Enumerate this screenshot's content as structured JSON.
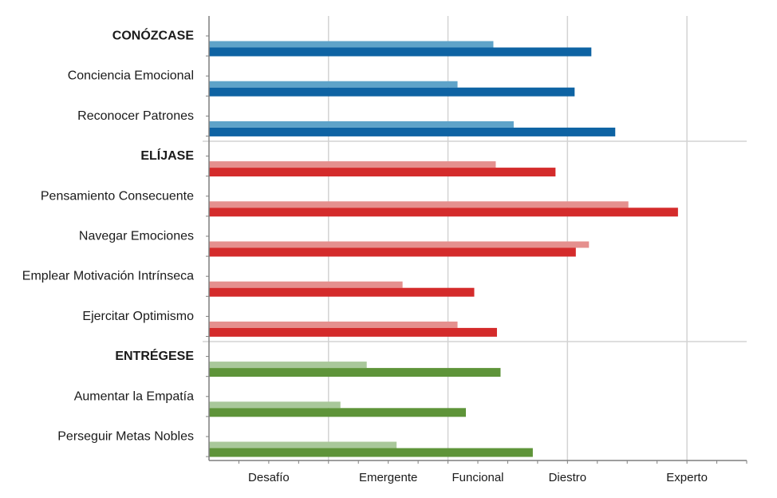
{
  "chart_data": {
    "type": "bar",
    "orientation": "horizontal",
    "categories": [
      {
        "label": "CONÓZCASE",
        "bold": true,
        "group": "blue"
      },
      {
        "label": "Conciencia Emocional",
        "bold": false,
        "group": "blue"
      },
      {
        "label": "Reconocer  Patrones",
        "bold": false,
        "group": "blue"
      },
      {
        "label": "ELÍJASE",
        "bold": true,
        "group": "red"
      },
      {
        "label": "Pensamiento  Consecuente",
        "bold": false,
        "group": "red"
      },
      {
        "label": "Navegar  Emociones",
        "bold": false,
        "group": "red"
      },
      {
        "label": "Emplear Motivación Intrínseca",
        "bold": false,
        "group": "red"
      },
      {
        "label": "Ejercitar Optimismo",
        "bold": false,
        "group": "red"
      },
      {
        "label": "ENTRÉGESE",
        "bold": true,
        "group": "green"
      },
      {
        "label": "Aumentar la Empatía",
        "bold": false,
        "group": "green"
      },
      {
        "label": "Perseguir Metas Nobles",
        "bold": false,
        "group": "green"
      }
    ],
    "series": [
      {
        "values": [
          102.6,
          96.6,
          106.0,
          103.0,
          125.2,
          118.6,
          87.4,
          96.6,
          81.4,
          77.0,
          86.4
        ]
      },
      {
        "values": [
          119.0,
          116.2,
          123.0,
          113.0,
          133.5,
          116.4,
          99.4,
          103.2,
          103.8,
          98.0,
          109.2
        ]
      }
    ],
    "xlim": [
      55,
      145
    ],
    "x_ticks": [
      {
        "label": "Desafío",
        "value": 65
      },
      {
        "label": "Emergente",
        "value": 85
      },
      {
        "label": "Funcional",
        "value": 100
      },
      {
        "label": "Diestro",
        "value": 115
      },
      {
        "label": "Experto",
        "value": 135
      }
    ],
    "colors": {
      "blue": {
        "light": "#5ea3c9",
        "dark": "#0e63a3"
      },
      "red": {
        "light": "#e5908e",
        "dark": "#d42b2b"
      },
      "green": {
        "light": "#a9c89a",
        "dark": "#5e9439"
      },
      "grid": "#d3d3d3",
      "axis": "#7f7f7f"
    },
    "grid": true
  }
}
